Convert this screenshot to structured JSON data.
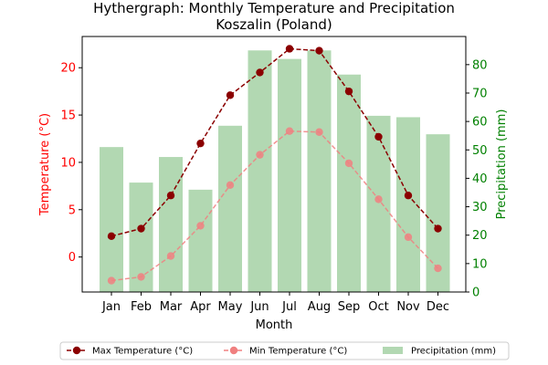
{
  "chart_data": {
    "type": "bar+line",
    "title": "Hythergraph: Monthly Temperature and Precipitation",
    "subtitle": "Koszalin (Poland)",
    "xlabel": "Month",
    "ylabel_left": "Temperature (°C)",
    "ylabel_right": "Precipitation (mm)",
    "categories": [
      "Jan",
      "Feb",
      "Mar",
      "Apr",
      "May",
      "Jun",
      "Jul",
      "Aug",
      "Sep",
      "Oct",
      "Nov",
      "Dec"
    ],
    "ylim_left": [
      -3.7,
      23.3
    ],
    "ylim_right": [
      0,
      89.9
    ],
    "yticks_left": [
      0,
      5,
      10,
      15,
      20
    ],
    "yticks_right": [
      0,
      10,
      20,
      30,
      40,
      50,
      60,
      70,
      80
    ],
    "series": [
      {
        "name": "Max Temperature (°C)",
        "axis": "left",
        "kind": "line",
        "style": "dashed",
        "color": "#8b0000",
        "values": [
          2.2,
          3.0,
          6.5,
          12.0,
          17.1,
          19.5,
          22.0,
          21.8,
          17.5,
          12.7,
          6.5,
          3.0
        ]
      },
      {
        "name": "Min Temperature (°C)",
        "axis": "left",
        "kind": "line",
        "style": "dashed",
        "color": "#f08080",
        "values": [
          -2.5,
          -2.1,
          0.1,
          3.3,
          7.6,
          10.8,
          13.3,
          13.2,
          9.9,
          6.1,
          2.1,
          -1.2
        ]
      },
      {
        "name": "Precipitation (mm)",
        "axis": "right",
        "kind": "bar",
        "color": "#b2d8b2",
        "values": [
          51,
          38.5,
          47.5,
          36,
          58.5,
          85,
          82,
          85,
          76.5,
          62,
          61.5,
          55.5
        ]
      }
    ],
    "legend_position": "bottom-center",
    "colors": {
      "left_axis": "#ff0000",
      "right_axis": "#008000",
      "axes": "#000000"
    }
  }
}
